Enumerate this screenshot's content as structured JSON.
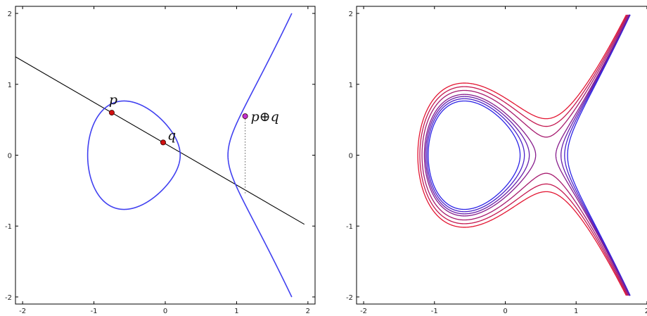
{
  "chart_data": [
    {
      "type": "line",
      "title": "",
      "xlabel": "",
      "ylabel": "",
      "xlim": [
        -2.1,
        2.1
      ],
      "ylim": [
        -2.1,
        2.1
      ],
      "xticks": [
        -2,
        -1,
        0,
        1,
        2
      ],
      "yticks": [
        -2,
        -1,
        0,
        1,
        2
      ],
      "grid": false,
      "curve": {
        "equation": "y^2 = x^3 - x + 0.2",
        "color": "#4040f0"
      },
      "secant": {
        "through": [
          [
            -0.75,
            0.6
          ],
          [
            -0.03,
            0.18
          ]
        ],
        "x_range": [
          -2.1,
          1.95
        ],
        "color": "#000000"
      },
      "points": [
        {
          "name": "p",
          "label": "p",
          "x": -0.75,
          "y": 0.6,
          "color": "#d01010"
        },
        {
          "name": "q",
          "label": "q",
          "x": -0.03,
          "y": 0.18,
          "color": "#d01010"
        },
        {
          "name": "p-plus-q",
          "label": "p⊕q",
          "x": 1.12,
          "y": 0.55,
          "color": "#c030d0"
        }
      ],
      "reflection": {
        "x": 1.12,
        "y_from": 0.55,
        "y_to": -0.55
      }
    },
    {
      "type": "line",
      "title": "",
      "xlabel": "",
      "ylabel": "",
      "xlim": [
        -2.1,
        2.1
      ],
      "ylim": [
        -2.1,
        2.1
      ],
      "xticks": [
        -2,
        -1,
        0,
        1,
        2
      ],
      "yticks": [
        -2,
        -1,
        0,
        1,
        2
      ],
      "grid": false,
      "family": "y^2 = x^3 - x + c",
      "series": [
        {
          "c": 0.2,
          "color": "#2b22e6"
        },
        {
          "c": 0.25,
          "color": "#4a20c8"
        },
        {
          "c": 0.3,
          "color": "#681eaa"
        },
        {
          "c": 0.35,
          "color": "#871c8c"
        },
        {
          "c": 0.45,
          "color": "#a61a6e"
        },
        {
          "c": 0.55,
          "color": "#c41850"
        },
        {
          "c": 0.65,
          "color": "#e31632"
        }
      ]
    }
  ]
}
